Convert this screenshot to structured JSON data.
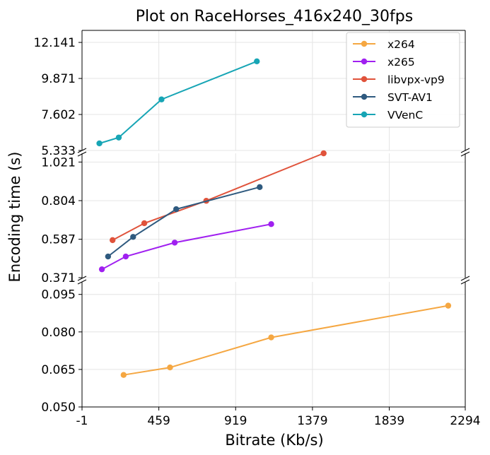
{
  "chart_data": {
    "type": "line",
    "title": "Plot on RaceHorses_416x240_30fps",
    "xlabel": "Bitrate (Kb/s)",
    "ylabel": "Encoding time (s)",
    "xlim": [
      -1,
      2294
    ],
    "x_ticks": [
      "-1",
      "459",
      "919",
      "1379",
      "1839",
      "2294"
    ],
    "broken_y_axis": true,
    "panels": [
      {
        "name": "top",
        "ylim": [
          5.333,
          12.9
        ],
        "y_ticks": [
          "5.333",
          "7.602",
          "9.871",
          "12.141"
        ]
      },
      {
        "name": "middle",
        "ylim": [
          0.371,
          1.07
        ],
        "y_ticks": [
          "0.371",
          "0.587",
          "0.804",
          "1.021"
        ]
      },
      {
        "name": "bottom",
        "ylim": [
          0.05,
          0.1
        ],
        "y_ticks": [
          "0.050",
          "0.065",
          "0.080",
          "0.095"
        ]
      }
    ],
    "grid": true,
    "legend_position": "top-right",
    "series": [
      {
        "name": "x264",
        "color": "#F5A742",
        "panel": "bottom",
        "x": [
          248,
          526,
          1132,
          2192
        ],
        "y": [
          0.0628,
          0.0658,
          0.0778,
          0.0905
        ]
      },
      {
        "name": "x265",
        "color": "#A020F0",
        "panel": "middle",
        "x": [
          118,
          261,
          554,
          1132
        ],
        "y": [
          0.418,
          0.49,
          0.568,
          0.672
        ]
      },
      {
        "name": "libvpx-vp9",
        "color": "#E0533B",
        "panel": "middle",
        "x": [
          182,
          372,
          743,
          1446
        ],
        "y": [
          0.582,
          0.677,
          0.803,
          1.07
        ]
      },
      {
        "name": "SVT-AV1",
        "color": "#2F5A7F",
        "panel": "middle",
        "x": [
          155,
          305,
          563,
          1063
        ],
        "y": [
          0.49,
          0.6,
          0.756,
          0.88
        ]
      },
      {
        "name": "VVenC",
        "color": "#17A5B5",
        "panel": "top",
        "x": [
          103,
          219,
          475,
          1046
        ],
        "y": [
          5.78,
          6.15,
          8.55,
          10.95
        ]
      }
    ]
  }
}
